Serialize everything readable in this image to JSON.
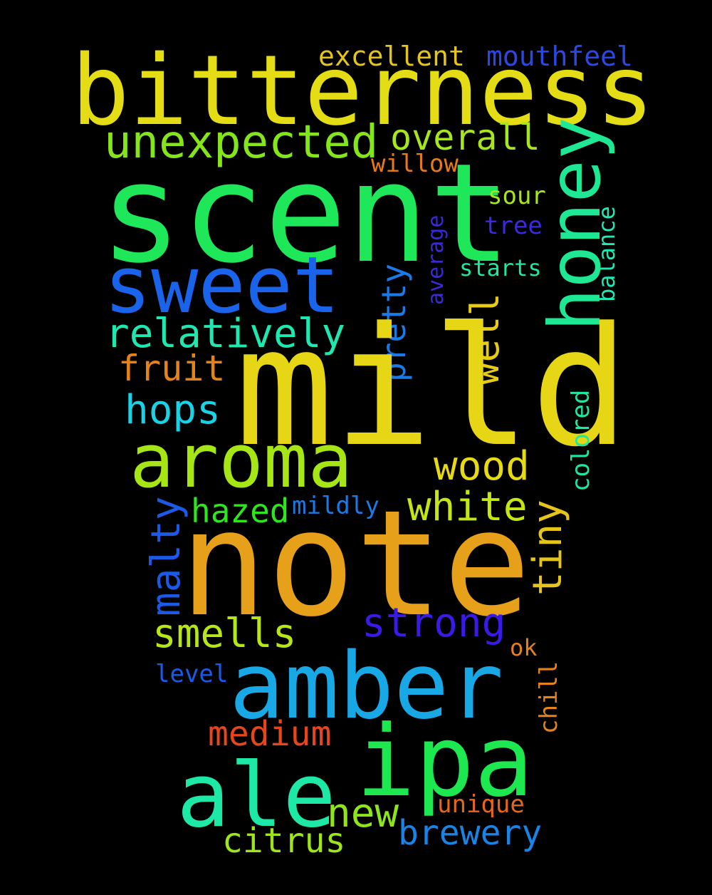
{
  "words": {
    "bitterness": {
      "text": "bitterness",
      "color": "#e4dc14"
    },
    "scent": {
      "text": "scent",
      "color": "#1ee85a"
    },
    "mild": {
      "text": "mild",
      "color": "#e6d616"
    },
    "note": {
      "text": "note",
      "color": "#e6a01a"
    },
    "amber": {
      "text": "amber",
      "color": "#18a8e6"
    },
    "ipa": {
      "text": "ipa",
      "color": "#1ee850"
    },
    "ale": {
      "text": "ale",
      "color": "#1ee8a6"
    },
    "sweet": {
      "text": "sweet",
      "color": "#1a64ec"
    },
    "aroma": {
      "text": "aroma",
      "color": "#a6e614"
    },
    "honey": {
      "text": "honey",
      "color": "#1ee894"
    },
    "unexpected": {
      "text": "unexpected",
      "color": "#84e61a"
    },
    "relatively": {
      "text": "relatively",
      "color": "#1ee8b0"
    },
    "overall": {
      "text": "overall",
      "color": "#a6e61e"
    },
    "excellent": {
      "text": "excellent",
      "color": "#e6c41a"
    },
    "mouthfeel": {
      "text": "mouthfeel",
      "color": "#2a48e6"
    },
    "willow": {
      "text": "willow",
      "color": "#e67a1a"
    },
    "sour": {
      "text": "sour",
      "color": "#a6e61e"
    },
    "tree": {
      "text": "tree",
      "color": "#3a2ae6"
    },
    "starts": {
      "text": "starts",
      "color": "#1ee8a0"
    },
    "average": {
      "text": "average",
      "color": "#3a2ad6"
    },
    "balance": {
      "text": "balance",
      "color": "#1ee8b4"
    },
    "pretty": {
      "text": "pretty",
      "color": "#1a7ae6"
    },
    "well": {
      "text": "well",
      "color": "#e6cc14"
    },
    "fruit": {
      "text": "fruit",
      "color": "#e6821a"
    },
    "hops": {
      "text": "hops",
      "color": "#1ad2e6"
    },
    "wood": {
      "text": "wood",
      "color": "#e6da14"
    },
    "colored": {
      "text": "colored",
      "color": "#1ee8a0"
    },
    "white": {
      "text": "white",
      "color": "#c6e614"
    },
    "hazed": {
      "text": "hazed",
      "color": "#2ee61e"
    },
    "mildly": {
      "text": "mildly",
      "color": "#1a7ae6"
    },
    "malty": {
      "text": "malty",
      "color": "#1a5ae6"
    },
    "tiny": {
      "text": "tiny",
      "color": "#e6c41a"
    },
    "smells": {
      "text": "smells",
      "color": "#b6e61a"
    },
    "strong": {
      "text": "strong",
      "color": "#3a1ae6"
    },
    "ok": {
      "text": "ok",
      "color": "#e6821a"
    },
    "level": {
      "text": "level",
      "color": "#1a5ae6"
    },
    "chill": {
      "text": "chill",
      "color": "#e6821a"
    },
    "medium": {
      "text": "medium",
      "color": "#e6461a"
    },
    "unique": {
      "text": "unique",
      "color": "#e6661a"
    },
    "new": {
      "text": "new",
      "color": "#8ee61a"
    },
    "brewery": {
      "text": "brewery",
      "color": "#1a84e6"
    },
    "citrus": {
      "text": "citrus",
      "color": "#9ee61a"
    }
  }
}
